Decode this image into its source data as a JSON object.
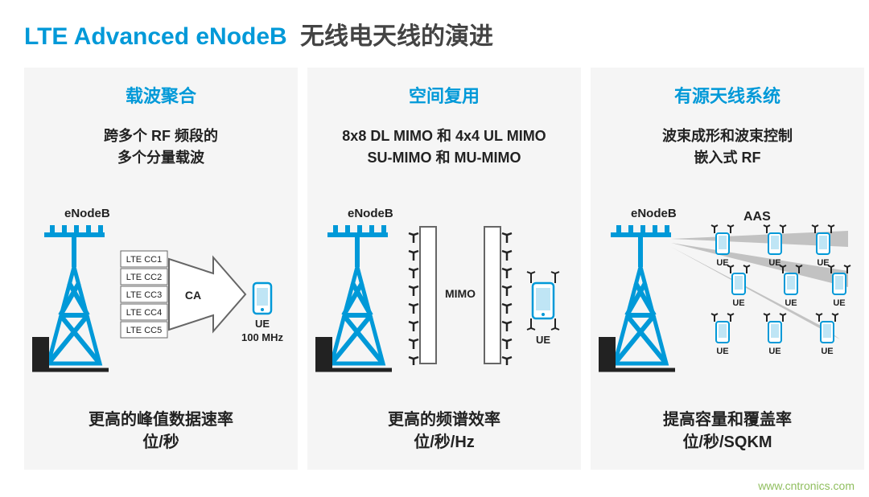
{
  "colors": {
    "accent": "#0099d8",
    "text": "#222222",
    "panel_bg": "#f5f5f5",
    "line": "#0099d8",
    "gray": "#666666",
    "white": "#ffffff"
  },
  "title": {
    "en": "LTE Advanced eNodeB",
    "cn": "无线电天线的演进"
  },
  "panels": [
    {
      "title": "载波聚合",
      "desc1": "跨多个 RF 频段的",
      "desc2": "多个分量载波",
      "footer1": "更高的峰值数据速率",
      "footer2": "位/秒",
      "diagram": {
        "tower_label": "eNodeB",
        "cc_labels": [
          "LTE CC1",
          "LTE CC2",
          "LTE CC3",
          "LTE CC4",
          "LTE CC5"
        ],
        "ca_label": "CA",
        "ue_label": "UE",
        "bw_label": "100 MHz"
      }
    },
    {
      "title": "空间复用",
      "desc1": "8x8 DL MIMO 和 4x4 UL MIMO",
      "desc2": "SU-MIMO 和 MU-MIMO",
      "footer1": "更高的频谱效率",
      "footer2": "位/秒/Hz",
      "diagram": {
        "tower_label": "eNodeB",
        "mimo_label": "MIMO",
        "ue_label": "UE"
      }
    },
    {
      "title": "有源天线系统",
      "desc1": "波束成形和波束控制",
      "desc2": "嵌入式 RF",
      "footer1": "提高容量和覆盖率",
      "footer2": "位/秒/SQKM",
      "diagram": {
        "tower_label": "eNodeB",
        "aas_label": "AAS",
        "ue_label": "UE"
      }
    }
  ],
  "watermark": "www.cntronics.com"
}
